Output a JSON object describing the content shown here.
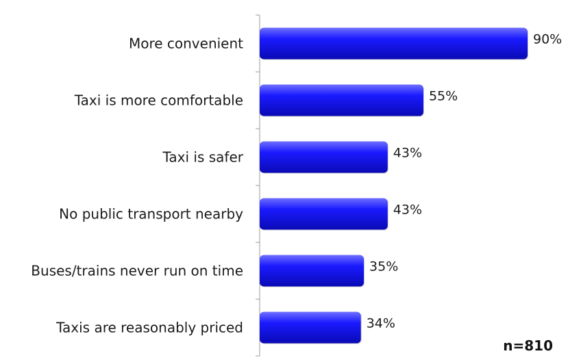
{
  "chart_data": {
    "type": "bar",
    "orientation": "horizontal",
    "categories": [
      "More convenient",
      "Taxi is more comfortable",
      "Taxi is safer",
      "No public transport nearby",
      "Buses/trains never run on time",
      "Taxis are reasonably priced"
    ],
    "values": [
      90,
      55,
      43,
      43,
      35,
      34
    ],
    "value_labels": [
      "90%",
      "55%",
      "43%",
      "43%",
      "35%",
      "34%"
    ],
    "title": "",
    "xlabel": "",
    "ylabel": "",
    "xlim": [
      0,
      100
    ],
    "grid": false,
    "legend": "none",
    "bar_color": "#1a1aff",
    "bar_color_dark": "#0a0ab5",
    "bar_color_light": "#6f6fff"
  },
  "note": "n=810"
}
